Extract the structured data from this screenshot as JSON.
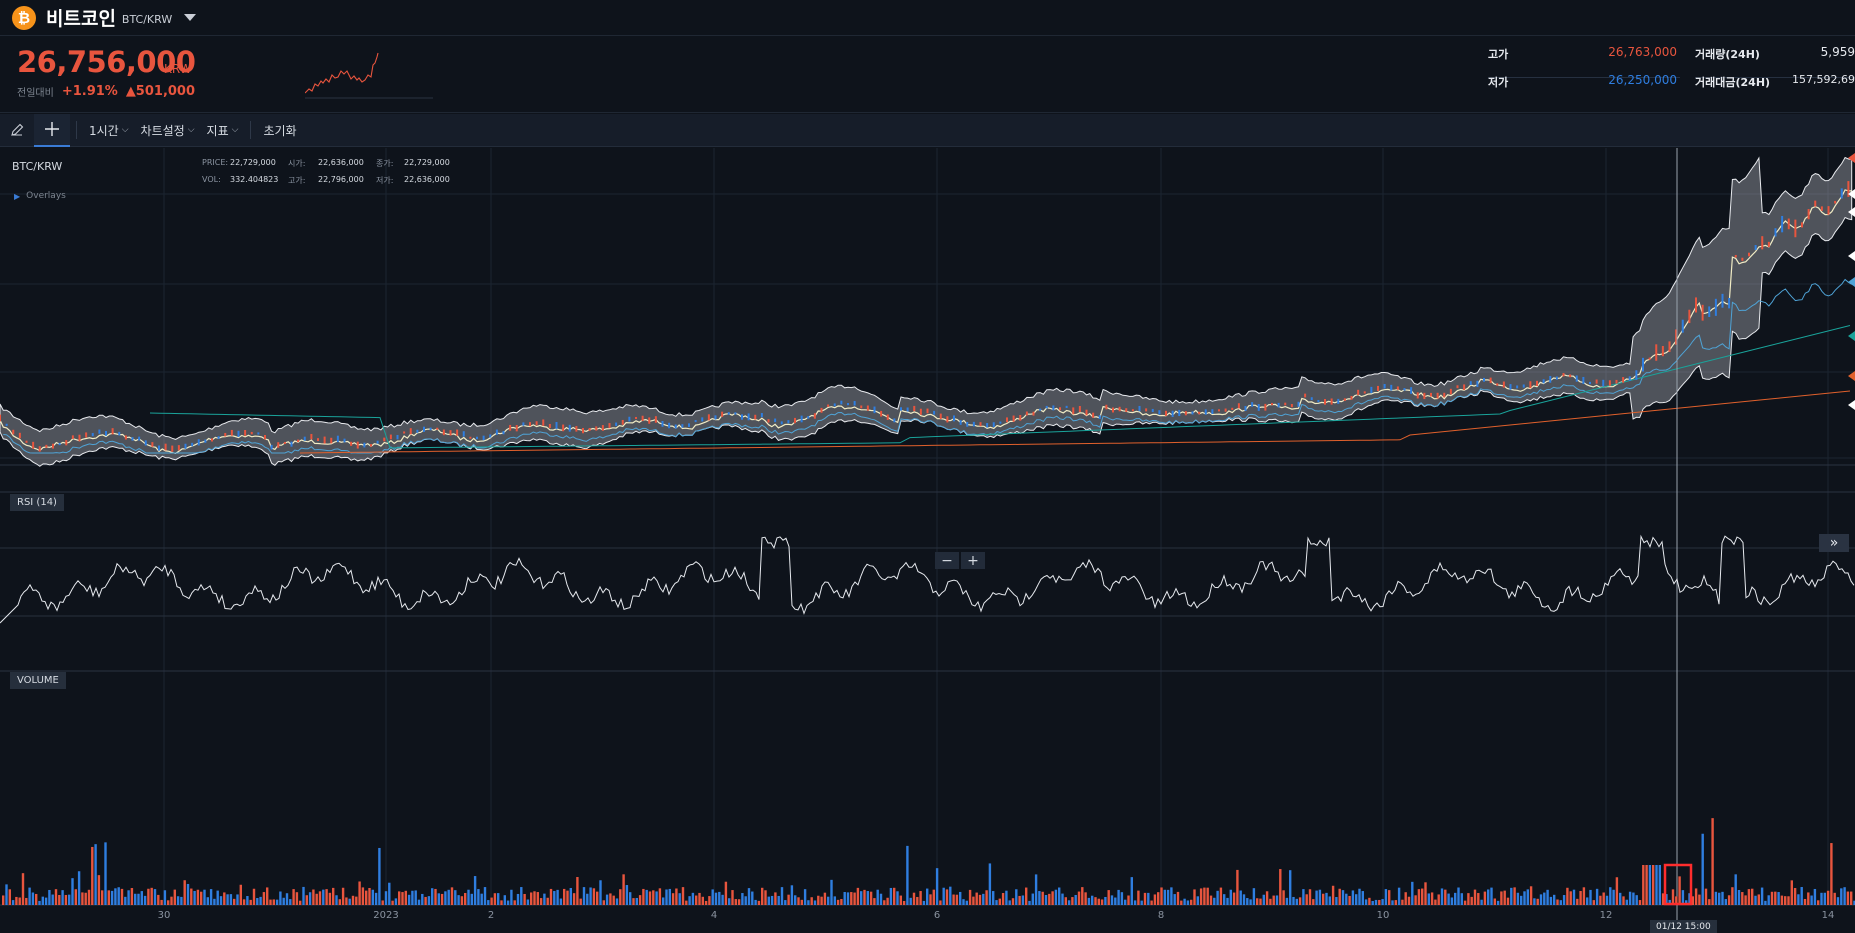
{
  "header": {
    "coin_name": "비트코인",
    "pair": "BTC/KRW",
    "logo_glyph": "₿"
  },
  "summary": {
    "price": "26,756,000",
    "unit": "KRW",
    "change_label": "전일대비",
    "change_pct": "+1.91%",
    "change_amt": "▲501,000",
    "stats": {
      "high_label": "고가",
      "high_value": "26,763,000",
      "low_label": "저가",
      "low_value": "26,250,000",
      "vol_label": "거래량(24H)",
      "vol_value": "5,959",
      "amt_label": "거래대금(24H)",
      "amt_value": "157,592,69"
    }
  },
  "toolbar": {
    "interval": "1시간",
    "chart_settings": "차트설정",
    "indicators": "지표",
    "reset": "초기화"
  },
  "chart": {
    "pair_label": "BTC/KRW",
    "overlays_label": "Overlays",
    "ohlc": {
      "price_key": "PRICE:",
      "price_val": "22,729,000",
      "open_key": "시가:",
      "open_val": "22,636,000",
      "close_key": "종가:",
      "close_val": "22,729,000",
      "vol_key": "VOL:",
      "vol_val": "332.404823",
      "high_key": "고가:",
      "high_val": "22,796,000",
      "low_key": "저가:",
      "low_val": "22,636,000"
    },
    "rsi_label": "RSI (14)",
    "volume_label": "VOLUME",
    "zoom_out": "−",
    "zoom_in": "+",
    "scroll_end": "»",
    "crosshair_time": "01/12 15:00",
    "x_ticks": [
      "30",
      "2023",
      "2",
      "4",
      "6",
      "8",
      "10",
      "12",
      "14"
    ],
    "colors": {
      "up": "#e8553e",
      "down": "#2f7ee0",
      "band_fill": "#c8ccd3",
      "ma_short": "#f1ecc5",
      "ma_mid": "#4fa3d6",
      "ma_long": "#1aa39a",
      "ma_200": "#e0602c"
    }
  }
}
